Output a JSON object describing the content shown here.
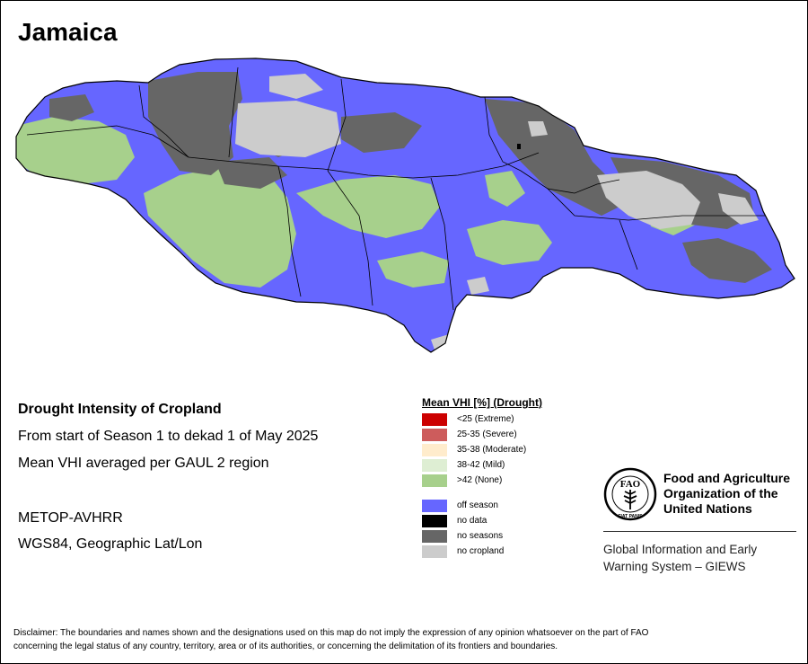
{
  "map": {
    "title": "Jamaica",
    "info_lines": [
      "Drought Intensity of Cropland",
      "From start of Season 1 to dekad 1 of May 2025",
      "Mean VHI averaged per GAUL 2 region",
      "METOP-AVHRR",
      "WGS84, Geographic Lat/Lon"
    ]
  },
  "legend": {
    "title": "Mean VHI [%] (Drought)",
    "vhi_classes": [
      {
        "label": "<25   (Extreme)",
        "color": "#cc0000"
      },
      {
        "label": "25-35 (Severe)",
        "color": "#cd5c5c"
      },
      {
        "label": "35-38 (Moderate)",
        "color": "#ffeccc"
      },
      {
        "label": "38-42 (Mild)",
        "color": "#deeed3"
      },
      {
        "label": ">42   (None)",
        "color": "#a7d08c"
      }
    ],
    "other_classes": [
      {
        "label": "off season",
        "color": "#6666ff"
      },
      {
        "label": "no data",
        "color": "#000000"
      },
      {
        "label": "no seasons",
        "color": "#666666"
      },
      {
        "label": "no cropland",
        "color": "#cccccc"
      }
    ]
  },
  "organization": {
    "logo_text": "FAO",
    "logo_motto": "FIAT PANIS",
    "name_lines": [
      "Food and Agriculture",
      "Organization of the",
      "United Nations"
    ],
    "system_lines": [
      "Global Information and Early",
      "Warning System – GIEWS"
    ]
  },
  "disclaimer": [
    "Disclaimer: The boundaries and names shown and the designations used on this map do not imply the expression of any opinion whatsoever on the part of FAO",
    "concerning the legal status of any country, territory, area or of its authorities, or concerning the delimitation of its frontiers and boundaries."
  ]
}
